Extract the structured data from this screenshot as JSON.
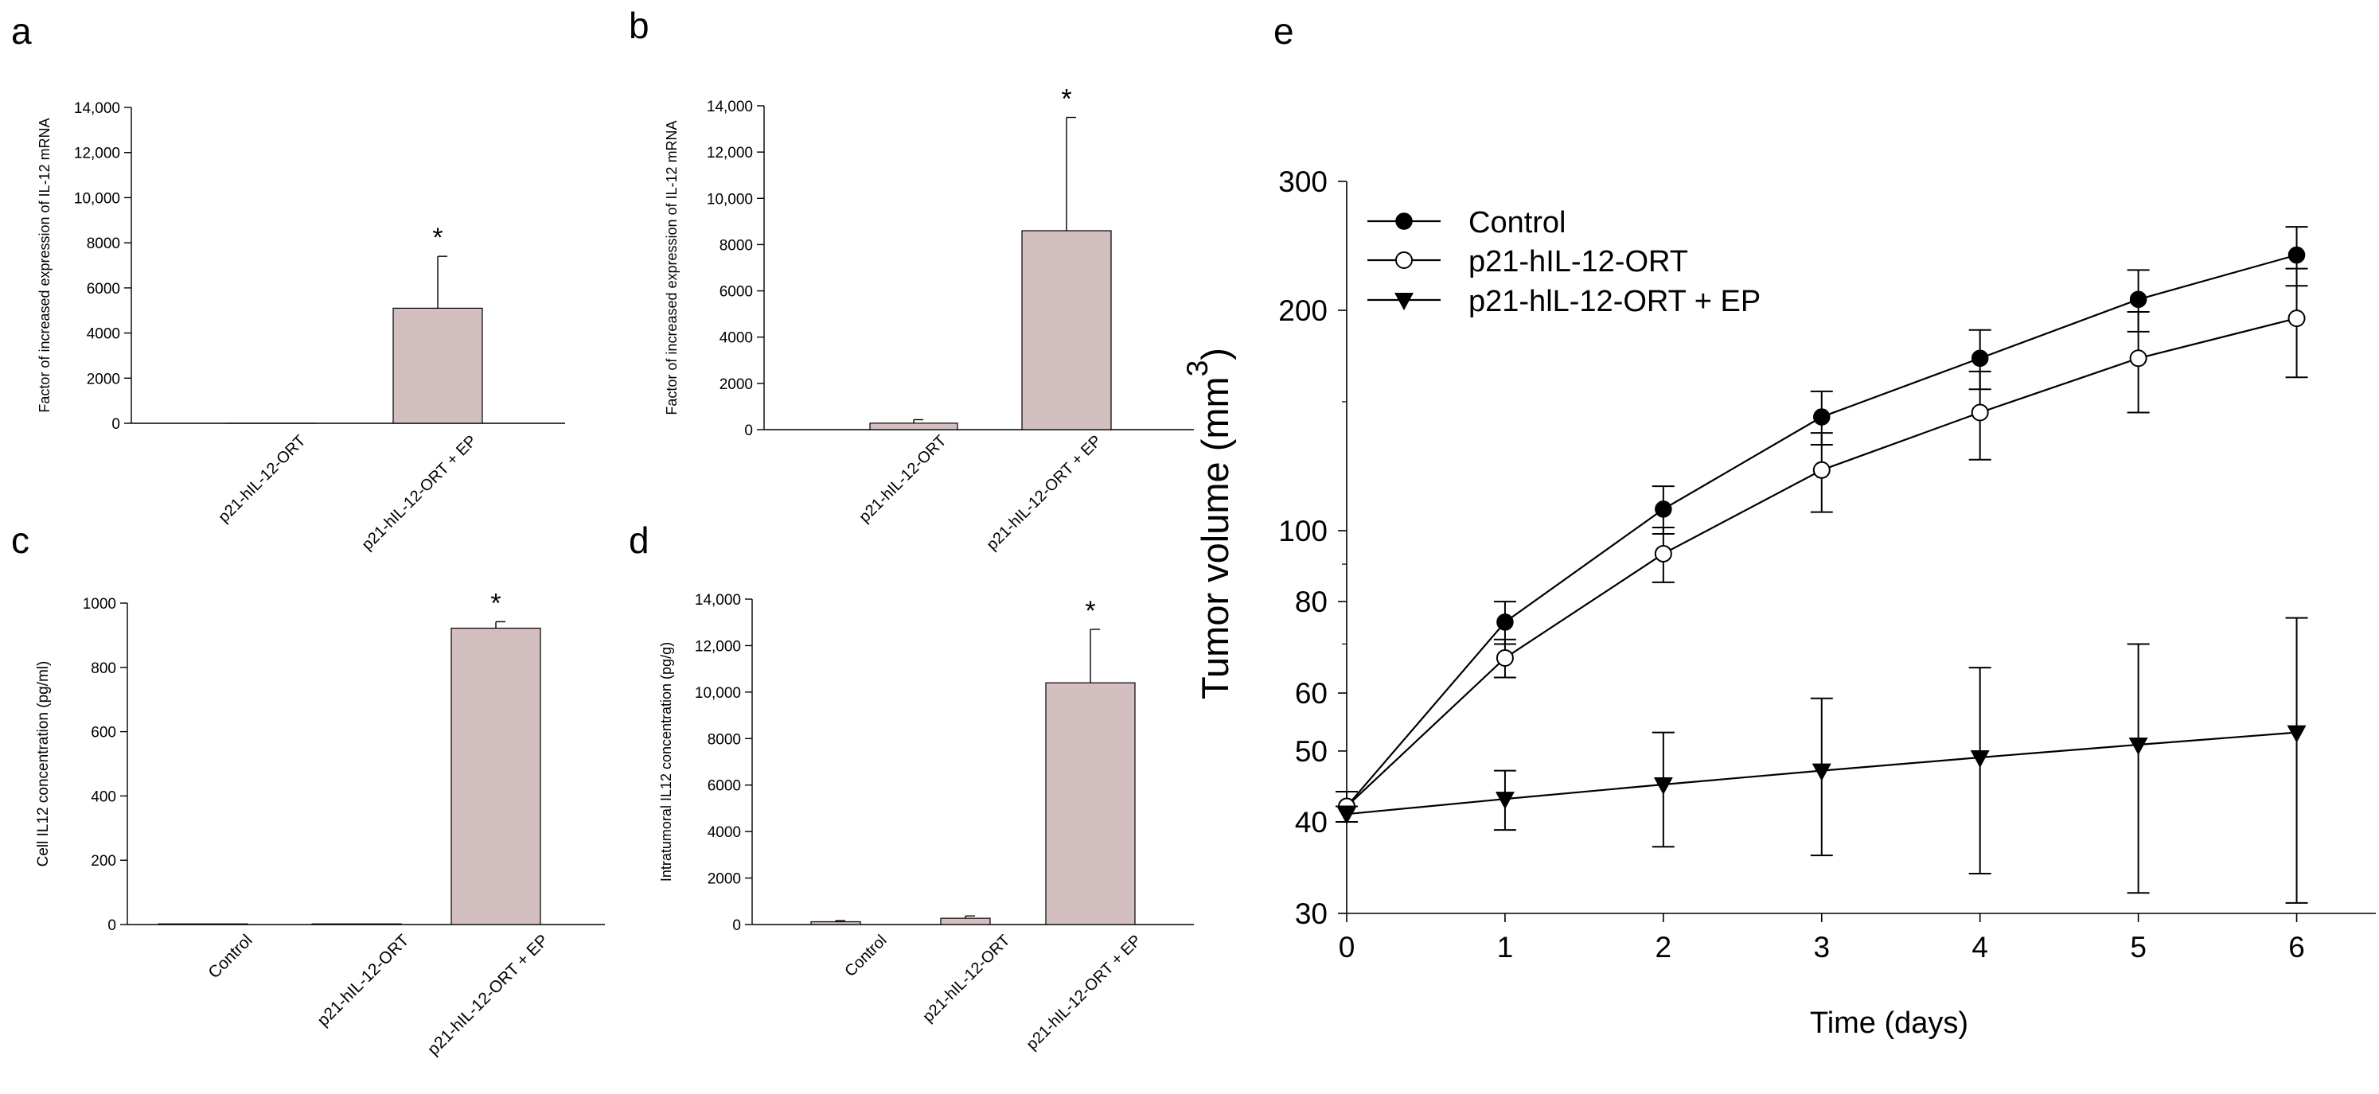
{
  "figure": {
    "panels": [
      {
        "label": "a",
        "chart_data": {
          "type": "bar",
          "categories": [
            "p21-hIL-12-ORT",
            "p21-hIL-12-ORT + EP"
          ],
          "values": [
            0,
            5100
          ],
          "errors": [
            0,
            2300
          ],
          "significance": [
            "",
            "*"
          ],
          "title": "",
          "xlabel": "",
          "ylabel": "Factor of increased expression of IL-12 mRNA",
          "ylim": [
            0,
            14000
          ],
          "yticks": [
            0,
            2000,
            4000,
            6000,
            8000,
            10000,
            12000,
            14000
          ],
          "ytick_labels": [
            "0",
            "2000",
            "4000",
            "6000",
            "8000",
            "10,000",
            "12,000",
            "14,000"
          ],
          "bar_color": "#d3bfc0"
        }
      },
      {
        "label": "b",
        "chart_data": {
          "type": "bar",
          "categories": [
            "p21-hIL-12-ORT",
            "p21-hIL-12-ORT + EP"
          ],
          "values": [
            280,
            8600
          ],
          "errors": [
            150,
            4900
          ],
          "significance": [
            "",
            "*"
          ],
          "title": "",
          "xlabel": "",
          "ylabel": "Factor of increased expression of IL-12 mRNA",
          "ylim": [
            0,
            14000
          ],
          "yticks": [
            0,
            2000,
            4000,
            6000,
            8000,
            10000,
            12000,
            14000
          ],
          "ytick_labels": [
            "0",
            "2000",
            "4000",
            "6000",
            "8000",
            "10,000",
            "12,000",
            "14,000"
          ],
          "bar_color": "#d3bfc0"
        }
      },
      {
        "label": "c",
        "chart_data": {
          "type": "bar",
          "categories": [
            "Control",
            "p21-hIL-12-ORT",
            "p21-hIL-12-ORT + EP"
          ],
          "values": [
            2,
            2,
            922
          ],
          "errors": [
            0,
            0,
            20
          ],
          "significance": [
            "",
            "",
            "*"
          ],
          "title": "",
          "xlabel": "",
          "ylabel": "Cell IL12 concentration (pg/ml)",
          "ylim": [
            0,
            1000
          ],
          "yticks": [
            0,
            200,
            400,
            600,
            800,
            1000
          ],
          "ytick_labels": [
            "0",
            "200",
            "400",
            "600",
            "800",
            "1000"
          ],
          "bar_color": "#d3bfc0"
        }
      },
      {
        "label": "d",
        "chart_data": {
          "type": "bar",
          "categories": [
            "Control",
            "p21-hIL-12-ORT",
            "p21-hIL-12-ORT + EP"
          ],
          "values": [
            120,
            270,
            10400
          ],
          "errors": [
            50,
            100,
            2300
          ],
          "significance": [
            "",
            "",
            "*"
          ],
          "title": "",
          "xlabel": "",
          "ylabel": "Intratumoral IL12 concentration (pg/g)",
          "ylim": [
            0,
            14000
          ],
          "yticks": [
            0,
            2000,
            4000,
            6000,
            8000,
            10000,
            12000,
            14000
          ],
          "ytick_labels": [
            "0",
            "2000",
            "4000",
            "6000",
            "8000",
            "10,000",
            "12,000",
            "14,000"
          ],
          "bar_color": "#d3bfc0"
        }
      },
      {
        "label": "e",
        "chart_data": {
          "type": "line",
          "yscale": "log",
          "x": [
            0,
            1,
            2,
            3,
            4,
            5,
            6
          ],
          "xticks": [
            0,
            1,
            2,
            3,
            4,
            5,
            6
          ],
          "xlim": [
            0,
            6.5
          ],
          "ylim": [
            30,
            300
          ],
          "yticks": [
            30,
            40,
            50,
            60,
            80,
            100,
            200,
            300
          ],
          "ytick_labels": [
            "30",
            "40",
            "50",
            "60",
            "80",
            "100",
            "200",
            "300"
          ],
          "title": "",
          "xlabel": "Time (days)",
          "ylabel": "Tumor volume (mm",
          "ylabel_superscript": "3",
          "ylabel_suffix": ")",
          "legend_position": "top-left",
          "series": [
            {
              "name": "Control",
              "marker": "filled-circle",
              "values": [
                42,
                75,
                107,
                143,
                172,
                207,
                238
              ],
              "err_low": [
                2,
                5,
                8,
                12,
                16,
                20,
                22
              ],
              "err_high": [
                2,
                5,
                8,
                12,
                16,
                20,
                22
              ]
            },
            {
              "name": "p21-hIL-12-ORT",
              "marker": "open-circle",
              "values": [
                42,
                67,
                93,
                121,
                145,
                172,
                195
              ],
              "err_low": [
                2,
                4,
                8,
                15,
                20,
                27,
                33
              ],
              "err_high": [
                2,
                4,
                8,
                15,
                20,
                27,
                33
              ]
            },
            {
              "name": "p21-hlL-12-ORT + EP",
              "marker": "filled-triangle-down",
              "values": [
                41,
                43,
                45,
                47,
                49,
                51,
                53
              ],
              "err_low": [
                1,
                4,
                8,
                11,
                15,
                19,
                22
              ],
              "err_high": [
                1,
                4,
                8,
                12,
                16,
                19,
                23
              ]
            }
          ]
        }
      }
    ]
  }
}
